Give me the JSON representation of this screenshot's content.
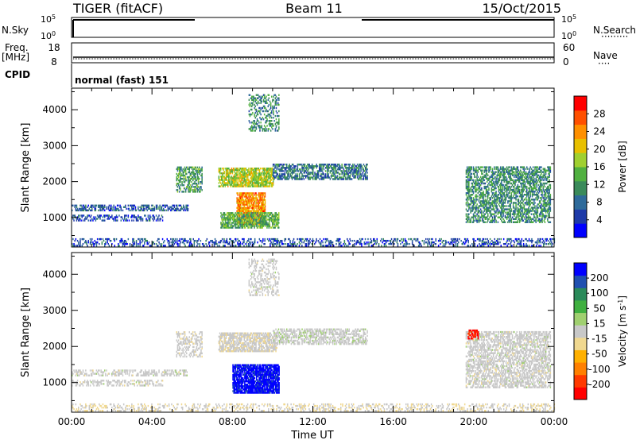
{
  "header": {
    "site": "TIGER (fitACF)",
    "beam": "Beam 11",
    "date": "15/Oct/2015"
  },
  "strips": {
    "nsky": {
      "label": "N.Sky",
      "tick_top": "10^5",
      "tick_bottom": "10^0"
    },
    "nsearch": {
      "label": "N.Search",
      "tick_top": "10^5",
      "tick_bottom": "10^0"
    },
    "freq": {
      "label_line1": "Freq.",
      "label_line2": "[MHz]",
      "tick_top": "18",
      "tick_bottom": "8"
    },
    "nave": {
      "label": "Nave",
      "tick_top": "60",
      "tick_bottom": "0"
    },
    "cpid": {
      "label": "CPID",
      "text": "normal (fast) 151"
    }
  },
  "chart_data": [
    {
      "type": "heatmap",
      "name": "power-panel",
      "ylabel": "Slant Range [km]",
      "xlabel": "",
      "x_ticks": [
        "00:00",
        "04:00",
        "08:00",
        "12:00",
        "16:00",
        "20:00",
        "00:00"
      ],
      "xlim_hours": [
        0,
        24
      ],
      "ylim_km": [
        180,
        4600
      ],
      "y_ticks": [
        1000,
        2000,
        3000,
        4000
      ],
      "colorbar": {
        "label": "Power [dB]",
        "ticks": [
          "28",
          "24",
          "20",
          "16",
          "12",
          "8",
          "4"
        ],
        "range": [
          0,
          32
        ],
        "colors": [
          "#0000ff",
          "#1e3aa8",
          "#2e6a9a",
          "#3a8a5a",
          "#50b040",
          "#a0d030",
          "#e8c000",
          "#ff9000",
          "#ff5000",
          "#ff0000"
        ]
      },
      "clusters": [
        {
          "t0": 0.0,
          "t1": 24.0,
          "r0": 200,
          "r1": 420,
          "v": 6,
          "density": 0.35
        },
        {
          "t0": 0.0,
          "t1": 5.8,
          "r0": 1180,
          "r1": 1320,
          "v": 7,
          "density": 0.5
        },
        {
          "t0": 0.0,
          "t1": 4.5,
          "r0": 900,
          "r1": 1040,
          "v": 6,
          "density": 0.45
        },
        {
          "t0": 5.2,
          "t1": 6.5,
          "r0": 1700,
          "r1": 2400,
          "v": 12,
          "density": 0.5
        },
        {
          "t0": 7.3,
          "t1": 10.0,
          "r0": 1850,
          "r1": 2350,
          "v": 18,
          "density": 0.75
        },
        {
          "t0": 10.0,
          "t1": 14.7,
          "r0": 2050,
          "r1": 2500,
          "v": 9,
          "density": 0.6
        },
        {
          "t0": 8.2,
          "t1": 9.6,
          "r0": 800,
          "r1": 1700,
          "v": 24,
          "density": 0.8
        },
        {
          "t0": 7.4,
          "t1": 10.3,
          "r0": 700,
          "r1": 1150,
          "v": 14,
          "density": 0.7
        },
        {
          "t0": 8.8,
          "t1": 10.3,
          "r0": 3400,
          "r1": 4400,
          "v": 11,
          "density": 0.35
        },
        {
          "t0": 19.6,
          "t1": 23.8,
          "r0": 850,
          "r1": 2400,
          "v": 11,
          "density": 0.55
        }
      ]
    },
    {
      "type": "heatmap",
      "name": "velocity-panel",
      "ylabel": "Slant Range [km]",
      "xlabel": "Time UT",
      "x_ticks": [
        "00:00",
        "04:00",
        "08:00",
        "12:00",
        "16:00",
        "20:00",
        "00:00"
      ],
      "xlim_hours": [
        0,
        24
      ],
      "ylim_km": [
        180,
        4600
      ],
      "y_ticks": [
        1000,
        2000,
        3000,
        4000
      ],
      "colorbar": {
        "label": "Velocity [m s^-1]",
        "ticks": [
          "200",
          "100",
          "50",
          "15",
          "-15",
          "-50",
          "-100",
          "-200"
        ],
        "range": [
          -250,
          250
        ],
        "colors": [
          "#ff0000",
          "#ff3a00",
          "#ff8000",
          "#ffb000",
          "#f0d890",
          "#c8c8c8",
          "#a0d070",
          "#40b040",
          "#2a8a5a",
          "#2050b0",
          "#0000ff"
        ]
      },
      "clusters": [
        {
          "t0": 0.0,
          "t1": 24.0,
          "r0": 200,
          "r1": 420,
          "v": -20,
          "density": 0.3
        },
        {
          "t0": 0.0,
          "t1": 5.8,
          "r0": 1180,
          "r1": 1320,
          "v": 0,
          "density": 0.45
        },
        {
          "t0": 0.0,
          "t1": 4.5,
          "r0": 900,
          "r1": 1040,
          "v": 0,
          "density": 0.4
        },
        {
          "t0": 5.2,
          "t1": 6.5,
          "r0": 1700,
          "r1": 2400,
          "v": -5,
          "density": 0.4
        },
        {
          "t0": 7.3,
          "t1": 10.2,
          "r0": 1850,
          "r1": 2350,
          "v": -10,
          "density": 0.7
        },
        {
          "t0": 10.0,
          "t1": 14.7,
          "r0": 2050,
          "r1": 2500,
          "v": 5,
          "density": 0.55
        },
        {
          "t0": 8.0,
          "t1": 10.3,
          "r0": 700,
          "r1": 1500,
          "v": 220,
          "density": 0.85
        },
        {
          "t0": 8.8,
          "t1": 10.3,
          "r0": 3400,
          "r1": 4400,
          "v": 0,
          "density": 0.3
        },
        {
          "t0": 19.6,
          "t1": 23.8,
          "r0": 850,
          "r1": 2400,
          "v": 0,
          "density": 0.55
        },
        {
          "t0": 19.7,
          "t1": 20.2,
          "r0": 2200,
          "r1": 2450,
          "v": -220,
          "density": 0.7
        }
      ]
    }
  ]
}
